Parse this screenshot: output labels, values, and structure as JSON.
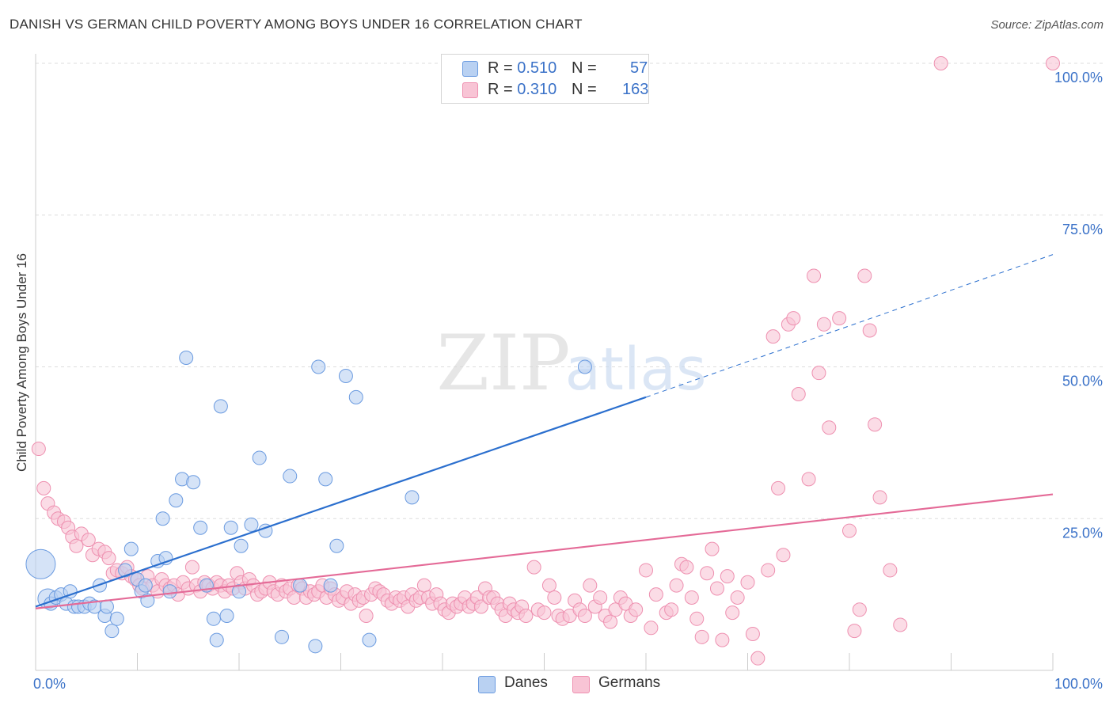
{
  "title": "DANISH VS GERMAN CHILD POVERTY AMONG BOYS UNDER 16 CORRELATION CHART",
  "source": "Source: ZipAtlas.com",
  "watermark": {
    "zip": "ZIP",
    "atlas": "atlas"
  },
  "colors": {
    "danes_fill": "#b9d1f2",
    "danes_stroke": "#6b9be0",
    "danes_line": "#2b6fce",
    "germans_fill": "#f8c4d5",
    "germans_stroke": "#ee90b0",
    "germans_line": "#e46a97",
    "tick_label": "#3b72c8",
    "grid": "#dddddd"
  },
  "legend": {
    "danes": {
      "r_label": "R =",
      "r_value": "0.510",
      "n_label": "N =",
      "n_value": "57"
    },
    "germans": {
      "r_label": "R =",
      "r_value": "0.310",
      "n_label": "N =",
      "n_value": "163"
    }
  },
  "chart_data": {
    "type": "scatter",
    "title": "DANISH VS GERMAN CHILD POVERTY AMONG BOYS UNDER 16 CORRELATION CHART",
    "xlabel": "",
    "ylabel": "Child Poverty Among Boys Under 16",
    "xlim": [
      0,
      100
    ],
    "ylim": [
      0,
      100
    ],
    "x_tick_labels": [
      "0.0%",
      "100.0%"
    ],
    "y_ticks": [
      25,
      50,
      75,
      100
    ],
    "y_tick_labels": [
      "25.0%",
      "50.0%",
      "75.0%",
      "100.0%"
    ],
    "grid": true,
    "legend_position": "top-center",
    "series": [
      {
        "name": "Danes",
        "r": 0.51,
        "n": 57,
        "trend": {
          "x0": 0,
          "y0": 10.5,
          "x1": 60,
          "y1": 45,
          "dashed_to_x": 100,
          "dashed_to_y": 68.5
        },
        "points": [
          [
            0.5,
            17.5,
            18
          ],
          [
            1.2,
            11.8,
            12
          ],
          [
            1.5,
            11,
            8
          ],
          [
            2,
            12,
            8
          ],
          [
            2.5,
            12.5,
            8
          ],
          [
            3,
            11,
            8
          ],
          [
            3.4,
            13,
            8
          ],
          [
            3.8,
            10.5,
            8
          ],
          [
            4.2,
            10.5,
            8
          ],
          [
            4.8,
            10.5,
            8
          ],
          [
            5.3,
            11,
            8
          ],
          [
            5.8,
            10.5,
            8
          ],
          [
            6.3,
            14,
            8
          ],
          [
            6.8,
            9,
            8
          ],
          [
            7,
            10.5,
            8
          ],
          [
            7.5,
            6.5,
            8
          ],
          [
            8,
            8.5,
            8
          ],
          [
            8.8,
            16.5,
            8
          ],
          [
            9.4,
            20,
            8
          ],
          [
            10,
            15,
            8
          ],
          [
            10.4,
            13,
            8
          ],
          [
            10.8,
            14,
            8
          ],
          [
            11,
            11.5,
            8
          ],
          [
            12,
            18,
            8
          ],
          [
            12.5,
            25,
            8
          ],
          [
            12.8,
            18.5,
            8
          ],
          [
            13.2,
            13,
            8
          ],
          [
            13.8,
            28,
            8
          ],
          [
            14.4,
            31.5,
            8
          ],
          [
            14.8,
            51.5,
            8
          ],
          [
            15.5,
            31,
            8
          ],
          [
            16.2,
            23.5,
            8
          ],
          [
            16.8,
            14,
            8
          ],
          [
            17.5,
            8.5,
            8
          ],
          [
            17.8,
            5,
            8
          ],
          [
            18.2,
            43.5,
            8
          ],
          [
            18.8,
            9,
            8
          ],
          [
            19.2,
            23.5,
            8
          ],
          [
            20,
            13,
            8
          ],
          [
            20.2,
            20.5,
            8
          ],
          [
            21.2,
            24,
            8
          ],
          [
            22,
            35,
            8
          ],
          [
            22.6,
            23,
            8
          ],
          [
            24.2,
            5.5,
            8
          ],
          [
            25,
            32,
            8
          ],
          [
            26,
            14,
            8
          ],
          [
            27.5,
            4,
            8
          ],
          [
            27.8,
            50,
            8
          ],
          [
            28.5,
            31.5,
            8
          ],
          [
            29,
            14,
            8
          ],
          [
            29.6,
            20.5,
            8
          ],
          [
            30.5,
            48.5,
            8
          ],
          [
            31.5,
            45,
            8
          ],
          [
            32.8,
            5,
            8
          ],
          [
            37,
            28.5,
            8
          ],
          [
            54,
            50,
            8
          ],
          [
            60,
            45,
            0
          ]
        ]
      },
      {
        "name": "Germans",
        "r": 0.31,
        "n": 163,
        "trend": {
          "x0": 0,
          "y0": 10.2,
          "x1": 100,
          "y1": 29
        },
        "points": [
          [
            0.3,
            36.5
          ],
          [
            0.8,
            30
          ],
          [
            1.2,
            27.5
          ],
          [
            1.8,
            26
          ],
          [
            2.2,
            25
          ],
          [
            2.8,
            24.5
          ],
          [
            3.2,
            23.5
          ],
          [
            3.6,
            22
          ],
          [
            4,
            20.5
          ],
          [
            4.5,
            22.5
          ],
          [
            5.2,
            21.5
          ],
          [
            5.6,
            19
          ],
          [
            6.2,
            20
          ],
          [
            6.8,
            19.5
          ],
          [
            7.2,
            18.5
          ],
          [
            7.6,
            16
          ],
          [
            8,
            16.5
          ],
          [
            8.5,
            16
          ],
          [
            9,
            17
          ],
          [
            9.4,
            15.5
          ],
          [
            9.8,
            15
          ],
          [
            10.2,
            14
          ],
          [
            10.5,
            13.5
          ],
          [
            11,
            15.5
          ],
          [
            11.5,
            14
          ],
          [
            12,
            13
          ],
          [
            12.4,
            15
          ],
          [
            12.8,
            14
          ],
          [
            13.2,
            13.5
          ],
          [
            13.6,
            14
          ],
          [
            14,
            12.5
          ],
          [
            14.5,
            14.5
          ],
          [
            15,
            13.5
          ],
          [
            15.4,
            17
          ],
          [
            15.8,
            14
          ],
          [
            16.2,
            13
          ],
          [
            16.6,
            14.5
          ],
          [
            17,
            14
          ],
          [
            17.4,
            13.5
          ],
          [
            17.8,
            14.5
          ],
          [
            18.2,
            14
          ],
          [
            18.6,
            13
          ],
          [
            19,
            14
          ],
          [
            19.4,
            13.5
          ],
          [
            19.8,
            16
          ],
          [
            20.2,
            14.5
          ],
          [
            20.6,
            13.5
          ],
          [
            21,
            15
          ],
          [
            21.4,
            14
          ],
          [
            21.8,
            12.5
          ],
          [
            22.2,
            13
          ],
          [
            22.6,
            13.5
          ],
          [
            23,
            14.5
          ],
          [
            23.4,
            13
          ],
          [
            23.8,
            12.5
          ],
          [
            24.2,
            14
          ],
          [
            24.6,
            13
          ],
          [
            25,
            13.5
          ],
          [
            25.4,
            12
          ],
          [
            25.8,
            14
          ],
          [
            26.2,
            13.5
          ],
          [
            26.6,
            12
          ],
          [
            27,
            13
          ],
          [
            27.4,
            12.5
          ],
          [
            27.8,
            13
          ],
          [
            28.2,
            14
          ],
          [
            28.6,
            12
          ],
          [
            29,
            13.5
          ],
          [
            29.4,
            12.5
          ],
          [
            29.8,
            11.5
          ],
          [
            30.2,
            12
          ],
          [
            30.6,
            13
          ],
          [
            31,
            11
          ],
          [
            31.4,
            12.5
          ],
          [
            31.8,
            11.5
          ],
          [
            32.2,
            12
          ],
          [
            32.5,
            9
          ],
          [
            33,
            12.5
          ],
          [
            33.4,
            13.5
          ],
          [
            33.8,
            13
          ],
          [
            34.2,
            12.5
          ],
          [
            34.6,
            11.5
          ],
          [
            35,
            11
          ],
          [
            35.4,
            12
          ],
          [
            35.8,
            11.5
          ],
          [
            36.2,
            12
          ],
          [
            36.6,
            10.5
          ],
          [
            37,
            12.5
          ],
          [
            37.4,
            11.5
          ],
          [
            37.8,
            12
          ],
          [
            38.2,
            14
          ],
          [
            38.6,
            12
          ],
          [
            39,
            11
          ],
          [
            39.4,
            12.5
          ],
          [
            39.8,
            11
          ],
          [
            40.2,
            10
          ],
          [
            40.6,
            9.5
          ],
          [
            41,
            11
          ],
          [
            41.4,
            10.5
          ],
          [
            41.8,
            11
          ],
          [
            42.2,
            12
          ],
          [
            42.6,
            10.5
          ],
          [
            43,
            11
          ],
          [
            43.4,
            12
          ],
          [
            43.8,
            10.5
          ],
          [
            44.2,
            13.5
          ],
          [
            44.6,
            12
          ],
          [
            45,
            12
          ],
          [
            45.4,
            11
          ],
          [
            45.8,
            10
          ],
          [
            46.2,
            9
          ],
          [
            46.6,
            11
          ],
          [
            47,
            10
          ],
          [
            47.4,
            9.5
          ],
          [
            47.8,
            10.5
          ],
          [
            48.2,
            9
          ],
          [
            49,
            17
          ],
          [
            49.4,
            10
          ],
          [
            50,
            9.5
          ],
          [
            50.5,
            14
          ],
          [
            51,
            12
          ],
          [
            51.4,
            9
          ],
          [
            51.8,
            8.5
          ],
          [
            52.5,
            9
          ],
          [
            53,
            11.5
          ],
          [
            53.5,
            10
          ],
          [
            54,
            9
          ],
          [
            54.5,
            14
          ],
          [
            55,
            10.5
          ],
          [
            55.5,
            12
          ],
          [
            56,
            9
          ],
          [
            56.5,
            8
          ],
          [
            57,
            10
          ],
          [
            57.5,
            12
          ],
          [
            58,
            11
          ],
          [
            58.5,
            9
          ],
          [
            59,
            10
          ],
          [
            60,
            16.5
          ],
          [
            60.5,
            7
          ],
          [
            61,
            12.5
          ],
          [
            62,
            9.5
          ],
          [
            62.5,
            10
          ],
          [
            63,
            14
          ],
          [
            63.5,
            17.5
          ],
          [
            64,
            17
          ],
          [
            64.5,
            12
          ],
          [
            65,
            8.5
          ],
          [
            65.5,
            5.5
          ],
          [
            66,
            16
          ],
          [
            66.5,
            20
          ],
          [
            67,
            13.5
          ],
          [
            67.5,
            5
          ],
          [
            68,
            15.5
          ],
          [
            68.5,
            9.5
          ],
          [
            69,
            12
          ],
          [
            70,
            14.5
          ],
          [
            70.5,
            6
          ],
          [
            71,
            2
          ],
          [
            72,
            16.5
          ],
          [
            72.5,
            55
          ],
          [
            73,
            30
          ],
          [
            73.5,
            19
          ],
          [
            74,
            57
          ],
          [
            74.5,
            58
          ],
          [
            75,
            45.5
          ],
          [
            76,
            31.5
          ],
          [
            76.5,
            65
          ],
          [
            77,
            49
          ],
          [
            77.5,
            57
          ],
          [
            78,
            40
          ],
          [
            79,
            58
          ],
          [
            80,
            23
          ],
          [
            80.5,
            6.5
          ],
          [
            81,
            10
          ],
          [
            81.5,
            65
          ],
          [
            82,
            56
          ],
          [
            82.5,
            40.5
          ],
          [
            83,
            28.5
          ],
          [
            84,
            16.5
          ],
          [
            85,
            7.5
          ],
          [
            89,
            100
          ],
          [
            100,
            100
          ]
        ]
      }
    ]
  },
  "bottom_legend": {
    "danes": "Danes",
    "germans": "Germans"
  }
}
